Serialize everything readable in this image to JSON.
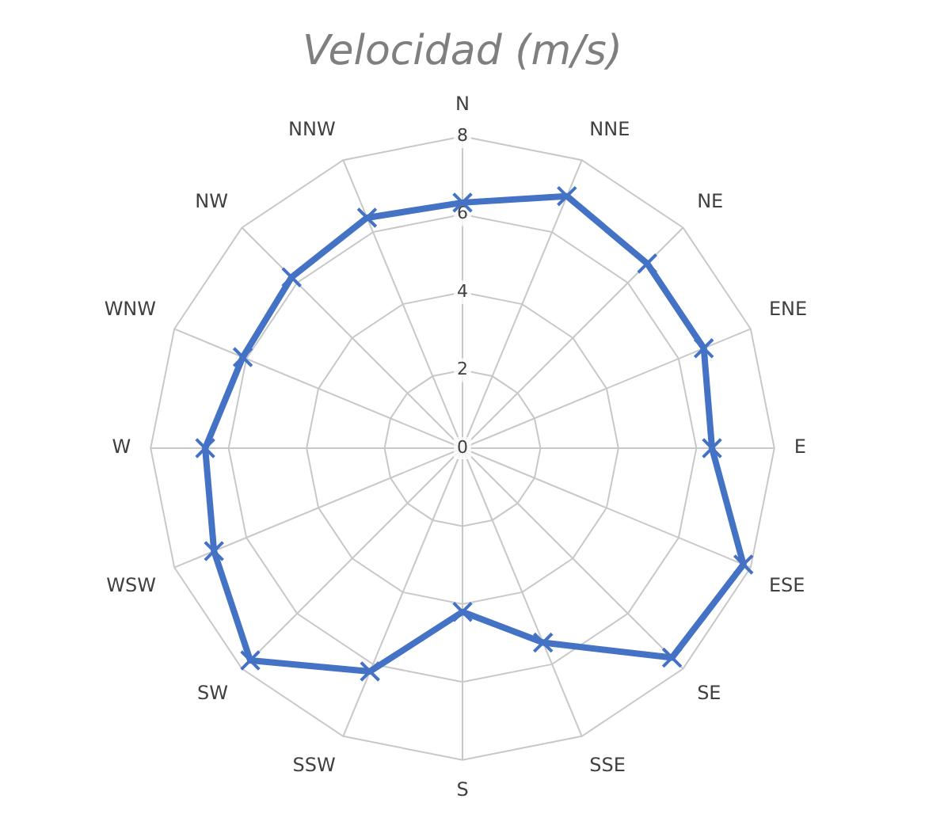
{
  "chart_data": {
    "type": "radar",
    "title": "Velocidad (m/s)",
    "categories": [
      "N",
      "NNE",
      "NE",
      "ENE",
      "E",
      "ESE",
      "SE",
      "SSE",
      "S",
      "SSW",
      "SW",
      "WSW",
      "W",
      "WNW",
      "NW",
      "NNW"
    ],
    "series": [
      {
        "color": "#4472c4",
        "values": [
          6.3,
          7.0,
          6.7,
          6.7,
          6.4,
          7.8,
          7.6,
          5.4,
          4.2,
          6.2,
          7.7,
          6.9,
          6.6,
          6.1,
          6.2,
          6.4
        ]
      }
    ],
    "ylim": [
      0,
      8
    ],
    "yticks": [
      0,
      2,
      4,
      6,
      8
    ],
    "grid": true,
    "marker": "cross",
    "legend": false
  }
}
